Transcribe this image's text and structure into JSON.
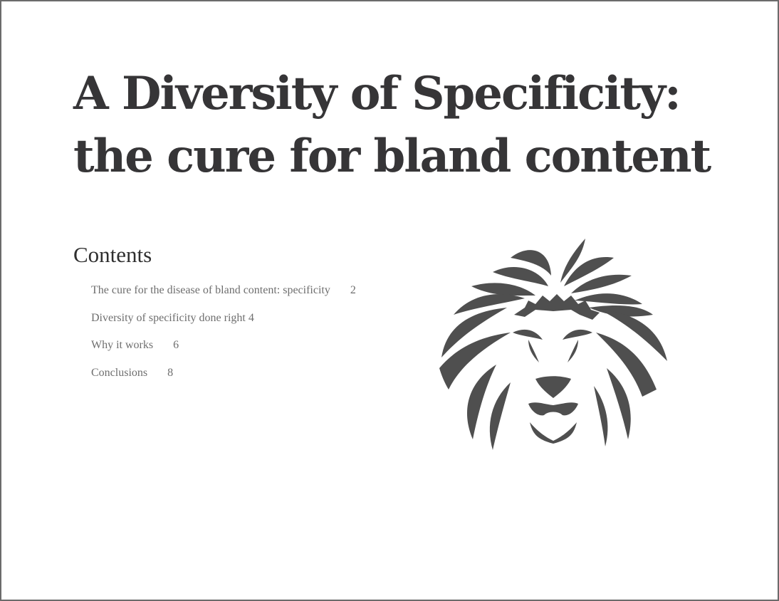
{
  "document": {
    "title": "A Diversity of Specificity: the cure for bland content"
  },
  "toc": {
    "heading": "Contents",
    "entries": [
      {
        "label": "The cure for the disease of bland content: specificity",
        "page": "2"
      },
      {
        "label": "Diversity of specificity done right",
        "page": "4"
      },
      {
        "label": "Why it works",
        "page": "6"
      },
      {
        "label": "Conclusions",
        "page": "8"
      }
    ]
  },
  "logo": {
    "icon": "lion-head-icon",
    "color": "#4f4f4f"
  },
  "colors": {
    "title": "#363537",
    "heading": "#2f2f2f",
    "toc_text": "#6e6e6e",
    "border": "#6b6b6b"
  }
}
